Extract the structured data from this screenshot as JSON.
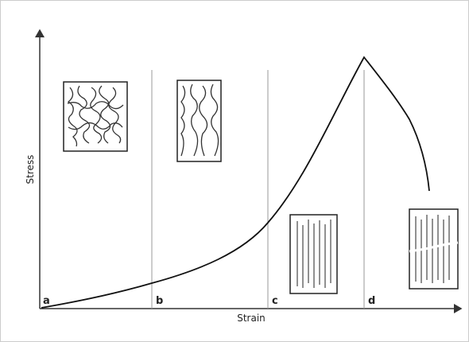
{
  "axes": {
    "y_label": "Stress",
    "x_label": "Strain"
  },
  "regions": [
    "a",
    "b",
    "c",
    "d"
  ]
}
